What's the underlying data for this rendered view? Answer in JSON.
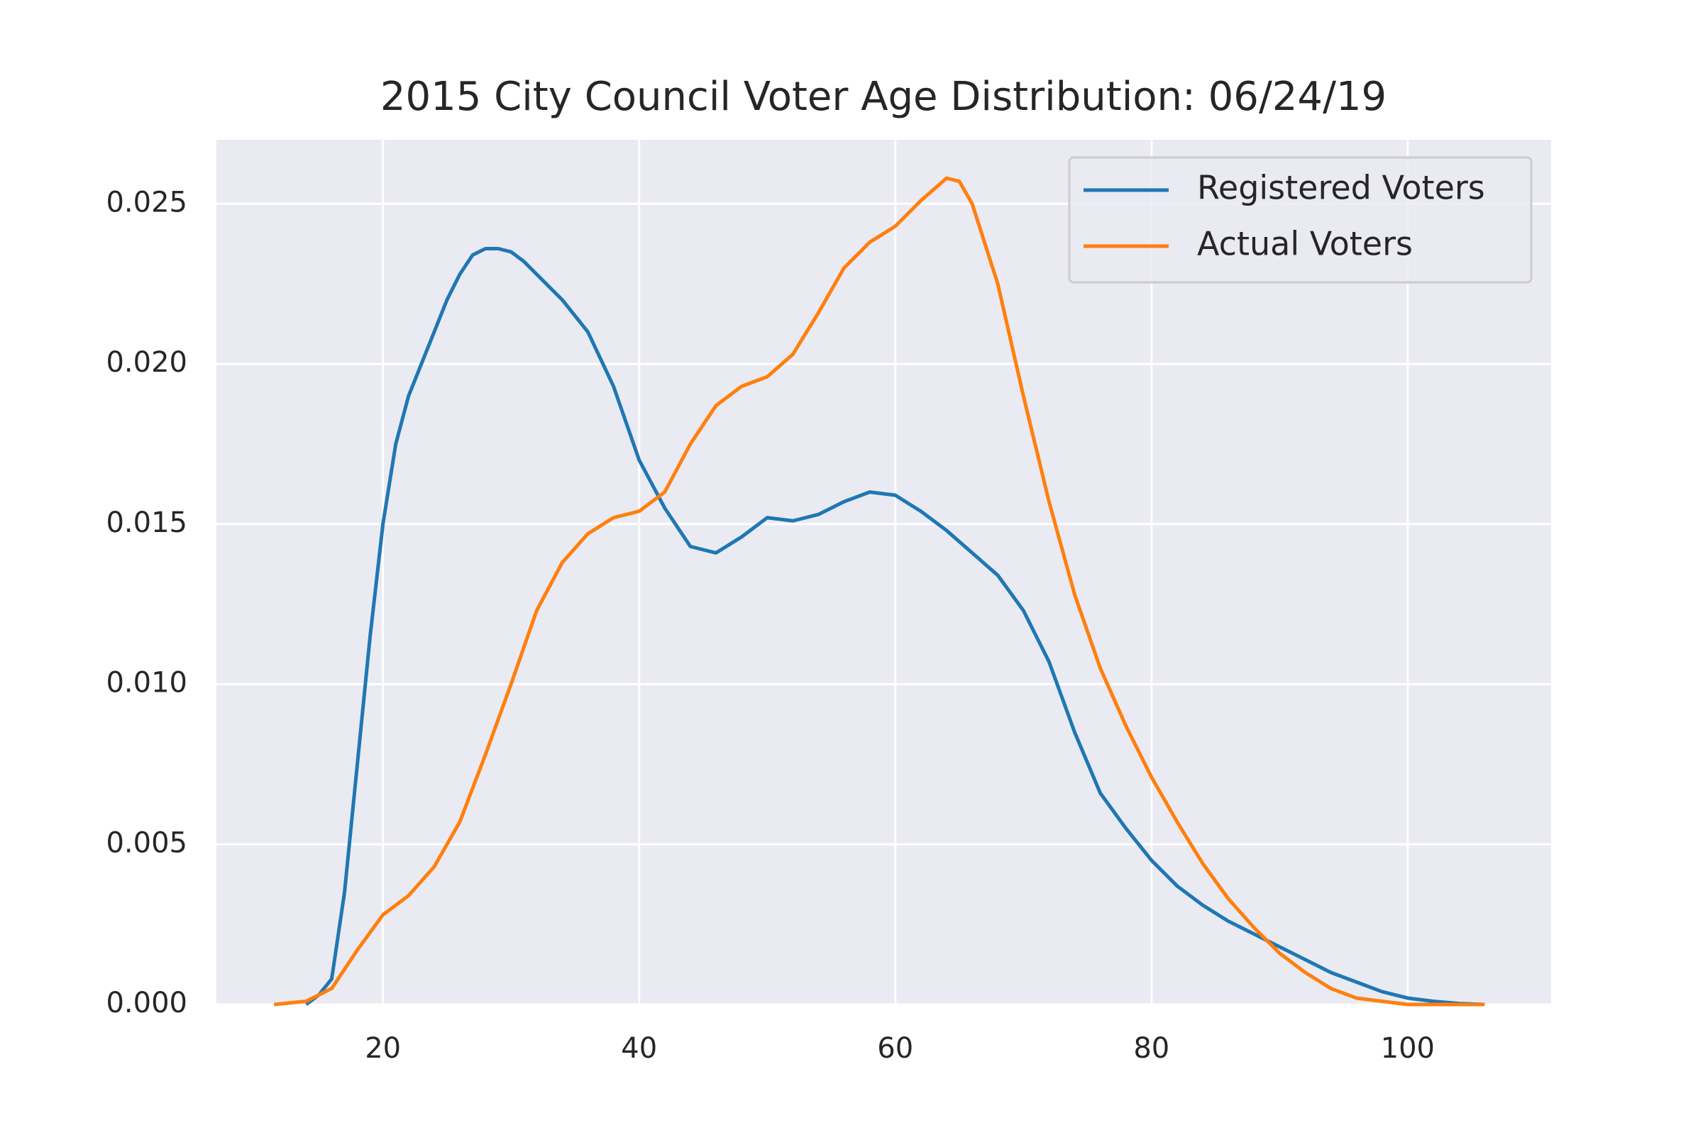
{
  "chart_data": {
    "type": "line",
    "title": "2015 City Council Voter Age Distribution: 06/24/19",
    "series": [
      {
        "name": "Registered Voters",
        "color": "#1f77b4",
        "x": [
          14,
          15,
          16,
          17,
          18,
          19,
          20,
          21,
          22,
          23,
          24,
          25,
          26,
          27,
          28,
          29,
          30,
          31,
          32,
          34,
          36,
          38,
          40,
          42,
          44,
          46,
          48,
          50,
          52,
          54,
          56,
          58,
          60,
          62,
          64,
          66,
          68,
          70,
          72,
          74,
          76,
          78,
          80,
          82,
          84,
          86,
          88,
          90,
          92,
          94,
          96,
          98,
          100,
          102,
          104,
          106
        ],
        "values": [
          0,
          0.0003,
          0.0008,
          0.0035,
          0.0075,
          0.0115,
          0.015,
          0.0175,
          0.019,
          0.02,
          0.021,
          0.022,
          0.0228,
          0.0234,
          0.0236,
          0.0236,
          0.0235,
          0.0232,
          0.0228,
          0.022,
          0.021,
          0.0193,
          0.017,
          0.0155,
          0.0143,
          0.0141,
          0.0146,
          0.0152,
          0.0151,
          0.0153,
          0.0157,
          0.016,
          0.0159,
          0.0154,
          0.0148,
          0.0141,
          0.0134,
          0.0123,
          0.0107,
          0.0085,
          0.0066,
          0.0055,
          0.0045,
          0.0037,
          0.0031,
          0.0026,
          0.0022,
          0.0018,
          0.0014,
          0.001,
          0.0007,
          0.0004,
          0.0002,
          0.0001,
          3e-05,
          0
        ]
      },
      {
        "name": "Actual Voters",
        "color": "#ff7f0e",
        "x": [
          11.5,
          14,
          16,
          18,
          20,
          22,
          24,
          26,
          28,
          30,
          32,
          34,
          36,
          38,
          40,
          42,
          44,
          46,
          48,
          50,
          52,
          54,
          56,
          58,
          60,
          62,
          64,
          65,
          66,
          68,
          70,
          72,
          74,
          76,
          78,
          80,
          82,
          84,
          86,
          88,
          90,
          92,
          94,
          96,
          98,
          100,
          106
        ],
        "values": [
          0,
          0.0001,
          0.0005,
          0.0017,
          0.0028,
          0.0034,
          0.0043,
          0.0057,
          0.0078,
          0.01,
          0.0123,
          0.0138,
          0.0147,
          0.0152,
          0.0154,
          0.016,
          0.0175,
          0.0187,
          0.0193,
          0.0196,
          0.0203,
          0.0216,
          0.023,
          0.0238,
          0.0243,
          0.0251,
          0.0258,
          0.0257,
          0.025,
          0.0225,
          0.019,
          0.0157,
          0.0128,
          0.0105,
          0.0087,
          0.0071,
          0.0057,
          0.0044,
          0.0033,
          0.0024,
          0.0016,
          0.001,
          0.0005,
          0.0002,
          0.0001,
          0,
          0
        ]
      }
    ],
    "xlim": [
      7,
      111.2
    ],
    "xticks": [
      20,
      40,
      60,
      80,
      100
    ],
    "ylim": [
      0,
      0.027
    ],
    "yticks": [
      {
        "value": 0,
        "label": "0.000"
      },
      {
        "value": 0.005,
        "label": "0.005"
      },
      {
        "value": 0.01,
        "label": "0.010"
      },
      {
        "value": 0.015,
        "label": "0.015"
      },
      {
        "value": 0.02,
        "label": "0.020"
      },
      {
        "value": 0.025,
        "label": "0.025"
      }
    ],
    "grid": true,
    "legend": "upper right"
  }
}
